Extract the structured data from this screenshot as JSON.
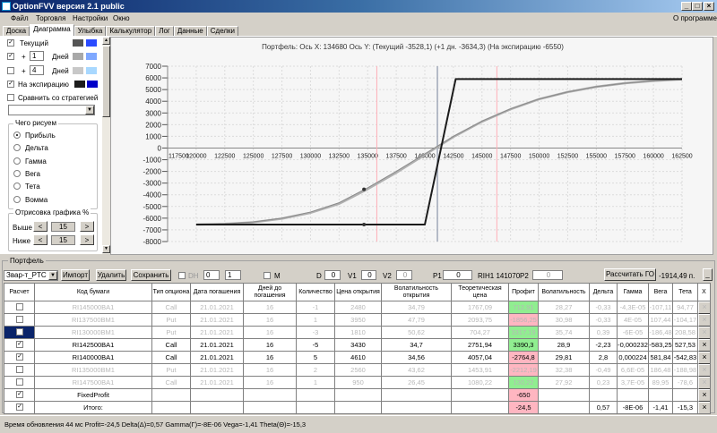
{
  "window": {
    "title": "OptionFVV версия 2.1 public",
    "controls": [
      "_",
      "□",
      "×"
    ]
  },
  "menu": {
    "items": [
      "Файл",
      "Торговля",
      "Настройки",
      "Окно"
    ],
    "about": "О программе"
  },
  "tabs": [
    "Доска",
    "Диаграмма",
    "Улыбка",
    "Калькулятор",
    "Лог",
    "Данные",
    "Сделки"
  ],
  "active_tab": "Диаграмма",
  "left": {
    "current": {
      "label": "Текущий",
      "checked": true,
      "colors": [
        "#555555",
        "#2a4bff"
      ]
    },
    "plus1": {
      "sign": "+",
      "value": "1",
      "unit": "Дней",
      "checked": true,
      "colors": [
        "#a8a8a8",
        "#7fa8ff"
      ]
    },
    "plus4": {
      "sign": "+",
      "value": "4",
      "unit": "Дней",
      "checked": false,
      "colors": [
        "#c8c8c8",
        "#a8d8ff"
      ]
    },
    "expiry": {
      "label": "На экспирацию",
      "checked": true,
      "colors": [
        "#1c1c1c",
        "#0000c8"
      ]
    },
    "compare": {
      "label": "Сравнить со стратегией",
      "checked": false
    },
    "strategy_select": "",
    "draw_group": {
      "title": "Чего рисуем",
      "options": [
        "Прибыль",
        "Дельта",
        "Гамма",
        "Вега",
        "Тета",
        "Вомма"
      ],
      "selected": "Прибыль"
    },
    "range_group": {
      "title": "Отрисовка графика %",
      "above_label": "Выше",
      "above": "15",
      "below_label": "Ниже",
      "below": "15",
      "dec": "<",
      "inc": ">"
    }
  },
  "chart": {
    "header": "Портфель: Ось X: 134680 Ось Y:  (Текущий -3528,1)  (+1 дн. -3634,3)  (На экспирацию -6550)",
    "colors": {
      "current": "#8a8a8a",
      "plus1": "#b0b0b0",
      "expiry": "#1c1c1c",
      "vline_pink": "#ffb0b8",
      "vline_gray": "#a0a8b8"
    }
  },
  "chart_data": {
    "type": "line",
    "xlim": [
      117500,
      162500
    ],
    "ylim": [
      -8000,
      7000
    ],
    "xticks": [
      117500,
      120000,
      122500,
      125000,
      127500,
      130000,
      132500,
      135000,
      137500,
      140000,
      142500,
      145000,
      147500,
      150000,
      152500,
      155000,
      157500,
      160000,
      162500
    ],
    "yticks": [
      7000,
      6000,
      5000,
      4000,
      3000,
      2000,
      1000,
      0,
      -1000,
      -2000,
      -3000,
      -4000,
      -5000,
      -6000,
      -7000,
      -8000
    ],
    "grid": true,
    "series": [
      {
        "name": "Текущий",
        "x": [
          120000,
          122500,
          125000,
          127500,
          130000,
          132500,
          135000,
          137500,
          140000,
          142500,
          145000,
          147500,
          150000,
          152500,
          155000,
          157500,
          160000,
          162500
        ],
        "y": [
          -6550,
          -6480,
          -6330,
          -6000,
          -5480,
          -4680,
          -3400,
          -2000,
          -500,
          1000,
          2300,
          3350,
          4200,
          4800,
          5250,
          5550,
          5750,
          5880
        ]
      },
      {
        "name": "+1 Дней",
        "x": [
          120000,
          122500,
          125000,
          127500,
          130000,
          132500,
          135000,
          137500,
          140000,
          142500,
          145000,
          147500,
          150000,
          152500,
          155000,
          157500,
          160000,
          162500
        ],
        "y": [
          -6550,
          -6490,
          -6350,
          -6040,
          -5540,
          -4770,
          -3510,
          -2110,
          -580,
          950,
          2260,
          3320,
          4180,
          4790,
          5240,
          5545,
          5745,
          5880
        ]
      },
      {
        "name": "На экспирацию",
        "x": [
          120000,
          140000,
          142700,
          162500
        ],
        "y": [
          -6550,
          -6550,
          5900,
          5900
        ]
      }
    ],
    "markers": [
      {
        "x": 134680,
        "y": -3528.1
      },
      {
        "x": 134680,
        "y": -6550
      }
    ],
    "vlines": [
      {
        "x": 135800,
        "color": "pink"
      },
      {
        "x": 146300,
        "color": "pink"
      },
      {
        "x": 141100,
        "color": "gray"
      }
    ]
  },
  "portfolio": {
    "title": "Портфель",
    "select": "Звар-т_PTC",
    "import": "Импорт",
    "delete": "Удалить",
    "save": "Сохранить",
    "dh_label": "DH",
    "spin1": "0",
    "spin2": "1",
    "m_label": "M",
    "d_label": "D",
    "d": "0",
    "v1_label": "V1",
    "v1": "0",
    "v2_label": "V2",
    "v2": "0",
    "p1_label": "P1",
    "p1": "0",
    "rih": "RIH1 141070",
    "p2_label": "P2",
    "p2": "0",
    "calc_go": "Рассчитать ГО",
    "go_value": "-1914,49 п.",
    "minimize": "_"
  },
  "table": {
    "columns": [
      "Расчет",
      "Код бумаги",
      "Тип опциона",
      "Дата погашения",
      "Дней до погашения",
      "Количество",
      "Цена открытия",
      "Волатильность открытия",
      "Теоретическая цена",
      "Профит",
      "Волатильность",
      "Дельта",
      "Гамма",
      "Вега",
      "Тета",
      "X"
    ],
    "rows": [
      {
        "checked": false,
        "active": false,
        "cells": [
          "RI145000BA1",
          "Call",
          "21.01.2021",
          "16",
          "-1",
          "2480",
          "34,79",
          "1767,09",
          "712,91",
          "28,27",
          "-0,33",
          "-4,3E-05",
          "-107,11",
          "94,77"
        ],
        "profit": "green"
      },
      {
        "checked": false,
        "active": false,
        "cells": [
          "RI137500BM1",
          "Put",
          "21.01.2021",
          "16",
          "1",
          "3950",
          "47,79",
          "2093,75",
          "-1856,25",
          "30,98",
          "-0,33",
          "4E-05",
          "107,44",
          "-104,17"
        ],
        "profit": "pink"
      },
      {
        "checked": false,
        "active": false,
        "selected": true,
        "cells": [
          "RI130000BM1",
          "Put",
          "21.01.2021",
          "16",
          "-3",
          "1810",
          "50,62",
          "704,27",
          "3317,19",
          "35,74",
          "0,39",
          "-6E-05",
          "-186,48",
          "208,58"
        ],
        "profit": "green"
      },
      {
        "checked": true,
        "active": true,
        "cells": [
          "RI142500BA1",
          "Call",
          "21.01.2021",
          "16",
          "-5",
          "3430",
          "34,7",
          "2751,94",
          "3390,3",
          "28,9",
          "-2,23",
          "-0,000232",
          "-583,25",
          "527,53"
        ],
        "profit": "green"
      },
      {
        "checked": true,
        "active": true,
        "cells": [
          "RI140000BA1",
          "Call",
          "21.01.2021",
          "16",
          "5",
          "4610",
          "34,56",
          "4057,04",
          "-2764,8",
          "29,81",
          "2,8",
          "0,000224",
          "581,84",
          "-542,83"
        ],
        "profit": "pink"
      },
      {
        "checked": false,
        "active": false,
        "cells": [
          "RI135000BM1",
          "Put",
          "21.01.2021",
          "16",
          "2",
          "2560",
          "43,62",
          "1453,91",
          "-2212,19",
          "32,38",
          "-0,49",
          "6,6E-05",
          "186,48",
          "-188,98"
        ],
        "profit": "pink"
      },
      {
        "checked": false,
        "active": false,
        "cells": [
          "RI147500BA1",
          "Call",
          "21.01.2021",
          "16",
          "1",
          "950",
          "26,45",
          "1080,22",
          "130,22",
          "27,92",
          "0,23",
          "3,7E-05",
          "89,95",
          "-78,6"
        ],
        "profit": "green"
      },
      {
        "checked": true,
        "active": true,
        "cells": [
          "FixedProfit",
          "",
          "",
          "",
          "",
          "",
          "",
          "",
          "-650",
          "",
          "",
          "",
          "",
          ""
        ],
        "profit": "pink"
      },
      {
        "checked": true,
        "active": true,
        "cells": [
          "Итого:",
          "",
          "",
          "",
          "",
          "",
          "",
          "",
          "-24,5",
          "",
          "0,57",
          "-8E-06",
          "-1,41",
          "-15,3"
        ],
        "profit": "pink"
      }
    ],
    "delete_glyph": "×"
  },
  "status": "Время обновления 44 мс  Profit=-24,5 Delta(Δ)=0,57 Gamma(Γ)=-8E-06 Vega=-1,41 Theta(Θ)=-15,3"
}
